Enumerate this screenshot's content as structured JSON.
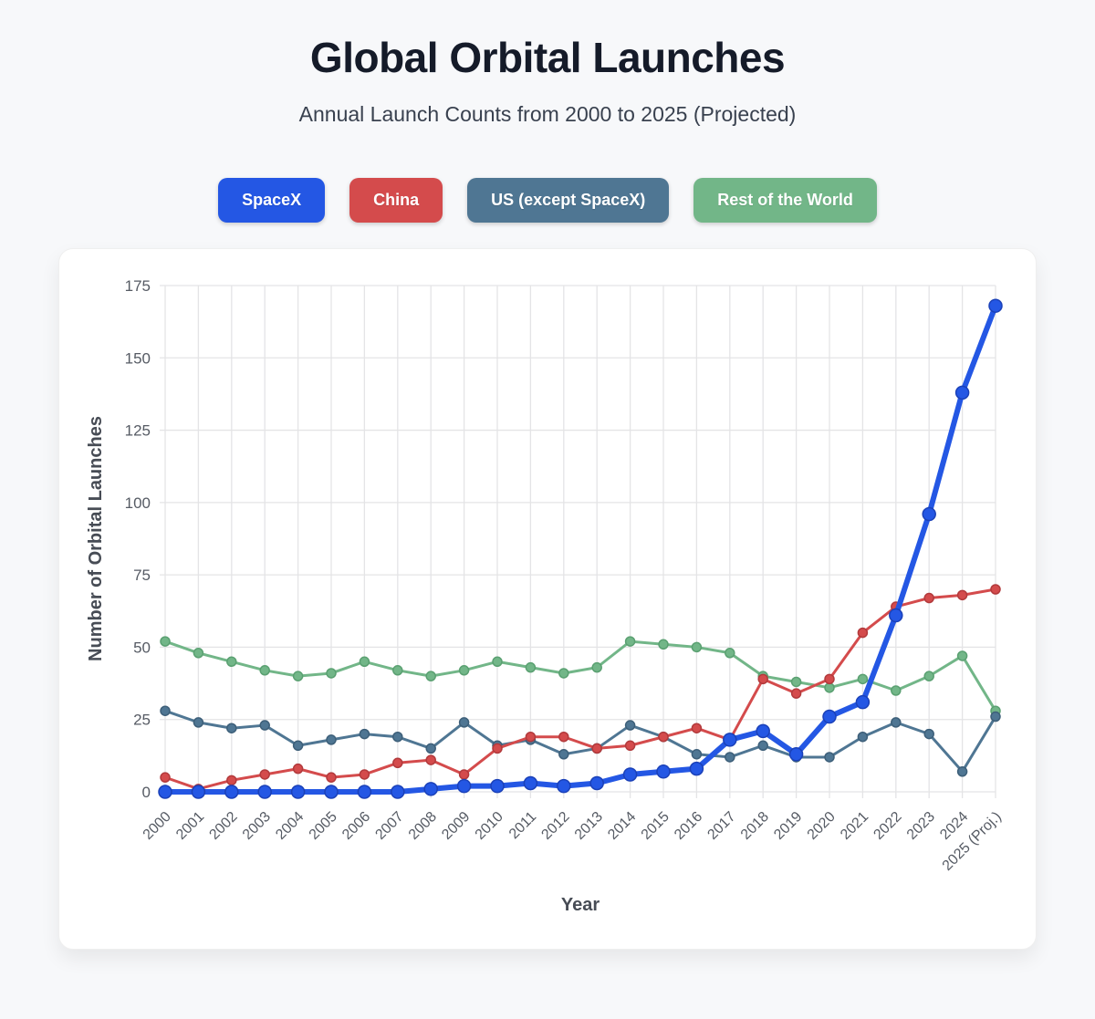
{
  "page": {
    "title": "Global Orbital Launches",
    "subtitle": "Annual Launch Counts from 2000 to 2025 (Projected)"
  },
  "legend": {
    "buttons": [
      {
        "label": "SpaceX",
        "color": "#2457e4"
      },
      {
        "label": "China",
        "color": "#d44b4c"
      },
      {
        "label": "US (except SpaceX)",
        "color": "#4f7693"
      },
      {
        "label": "Rest of the World",
        "color": "#72b688"
      }
    ]
  },
  "chart_data": {
    "type": "line",
    "title": "Global Orbital Launches",
    "xlabel": "Year",
    "ylabel": "Number of Orbital Launches",
    "ylim": [
      0,
      175
    ],
    "ytick_step": 25,
    "grid": true,
    "legend_position": "top",
    "categories": [
      "2000",
      "2001",
      "2002",
      "2003",
      "2004",
      "2005",
      "2006",
      "2007",
      "2008",
      "2009",
      "2010",
      "2011",
      "2012",
      "2013",
      "2014",
      "2015",
      "2016",
      "2017",
      "2018",
      "2019",
      "2020",
      "2021",
      "2022",
      "2023",
      "2024",
      "2025 (Proj.)"
    ],
    "series": [
      {
        "name": "SpaceX",
        "color": "#2457e4",
        "dot_stroke": "#1b41b8",
        "line_width": 6,
        "dot_radius": 7,
        "values": [
          0,
          0,
          0,
          0,
          0,
          0,
          0,
          0,
          1,
          2,
          2,
          3,
          2,
          3,
          6,
          7,
          8,
          18,
          21,
          13,
          26,
          31,
          61,
          96,
          138,
          168
        ]
      },
      {
        "name": "China",
        "color": "#d44b4c",
        "dot_stroke": "#b23a3c",
        "line_width": 3,
        "dot_radius": 5,
        "values": [
          5,
          1,
          4,
          6,
          8,
          5,
          6,
          10,
          11,
          6,
          15,
          19,
          19,
          15,
          16,
          19,
          22,
          18,
          39,
          34,
          39,
          55,
          64,
          67,
          68,
          70
        ]
      },
      {
        "name": "US (except SpaceX)",
        "color": "#4f7693",
        "dot_stroke": "#3d5f79",
        "line_width": 3,
        "dot_radius": 5,
        "values": [
          28,
          24,
          22,
          23,
          16,
          18,
          20,
          19,
          15,
          24,
          16,
          18,
          13,
          15,
          23,
          19,
          13,
          12,
          16,
          12,
          12,
          19,
          24,
          20,
          7,
          26
        ]
      },
      {
        "name": "Rest of the World",
        "color": "#72b688",
        "dot_stroke": "#5aa071",
        "line_width": 3,
        "dot_radius": 5,
        "values": [
          52,
          48,
          45,
          42,
          40,
          41,
          45,
          42,
          40,
          42,
          45,
          43,
          41,
          43,
          52,
          51,
          50,
          48,
          40,
          38,
          36,
          39,
          35,
          40,
          47,
          28
        ]
      }
    ]
  }
}
